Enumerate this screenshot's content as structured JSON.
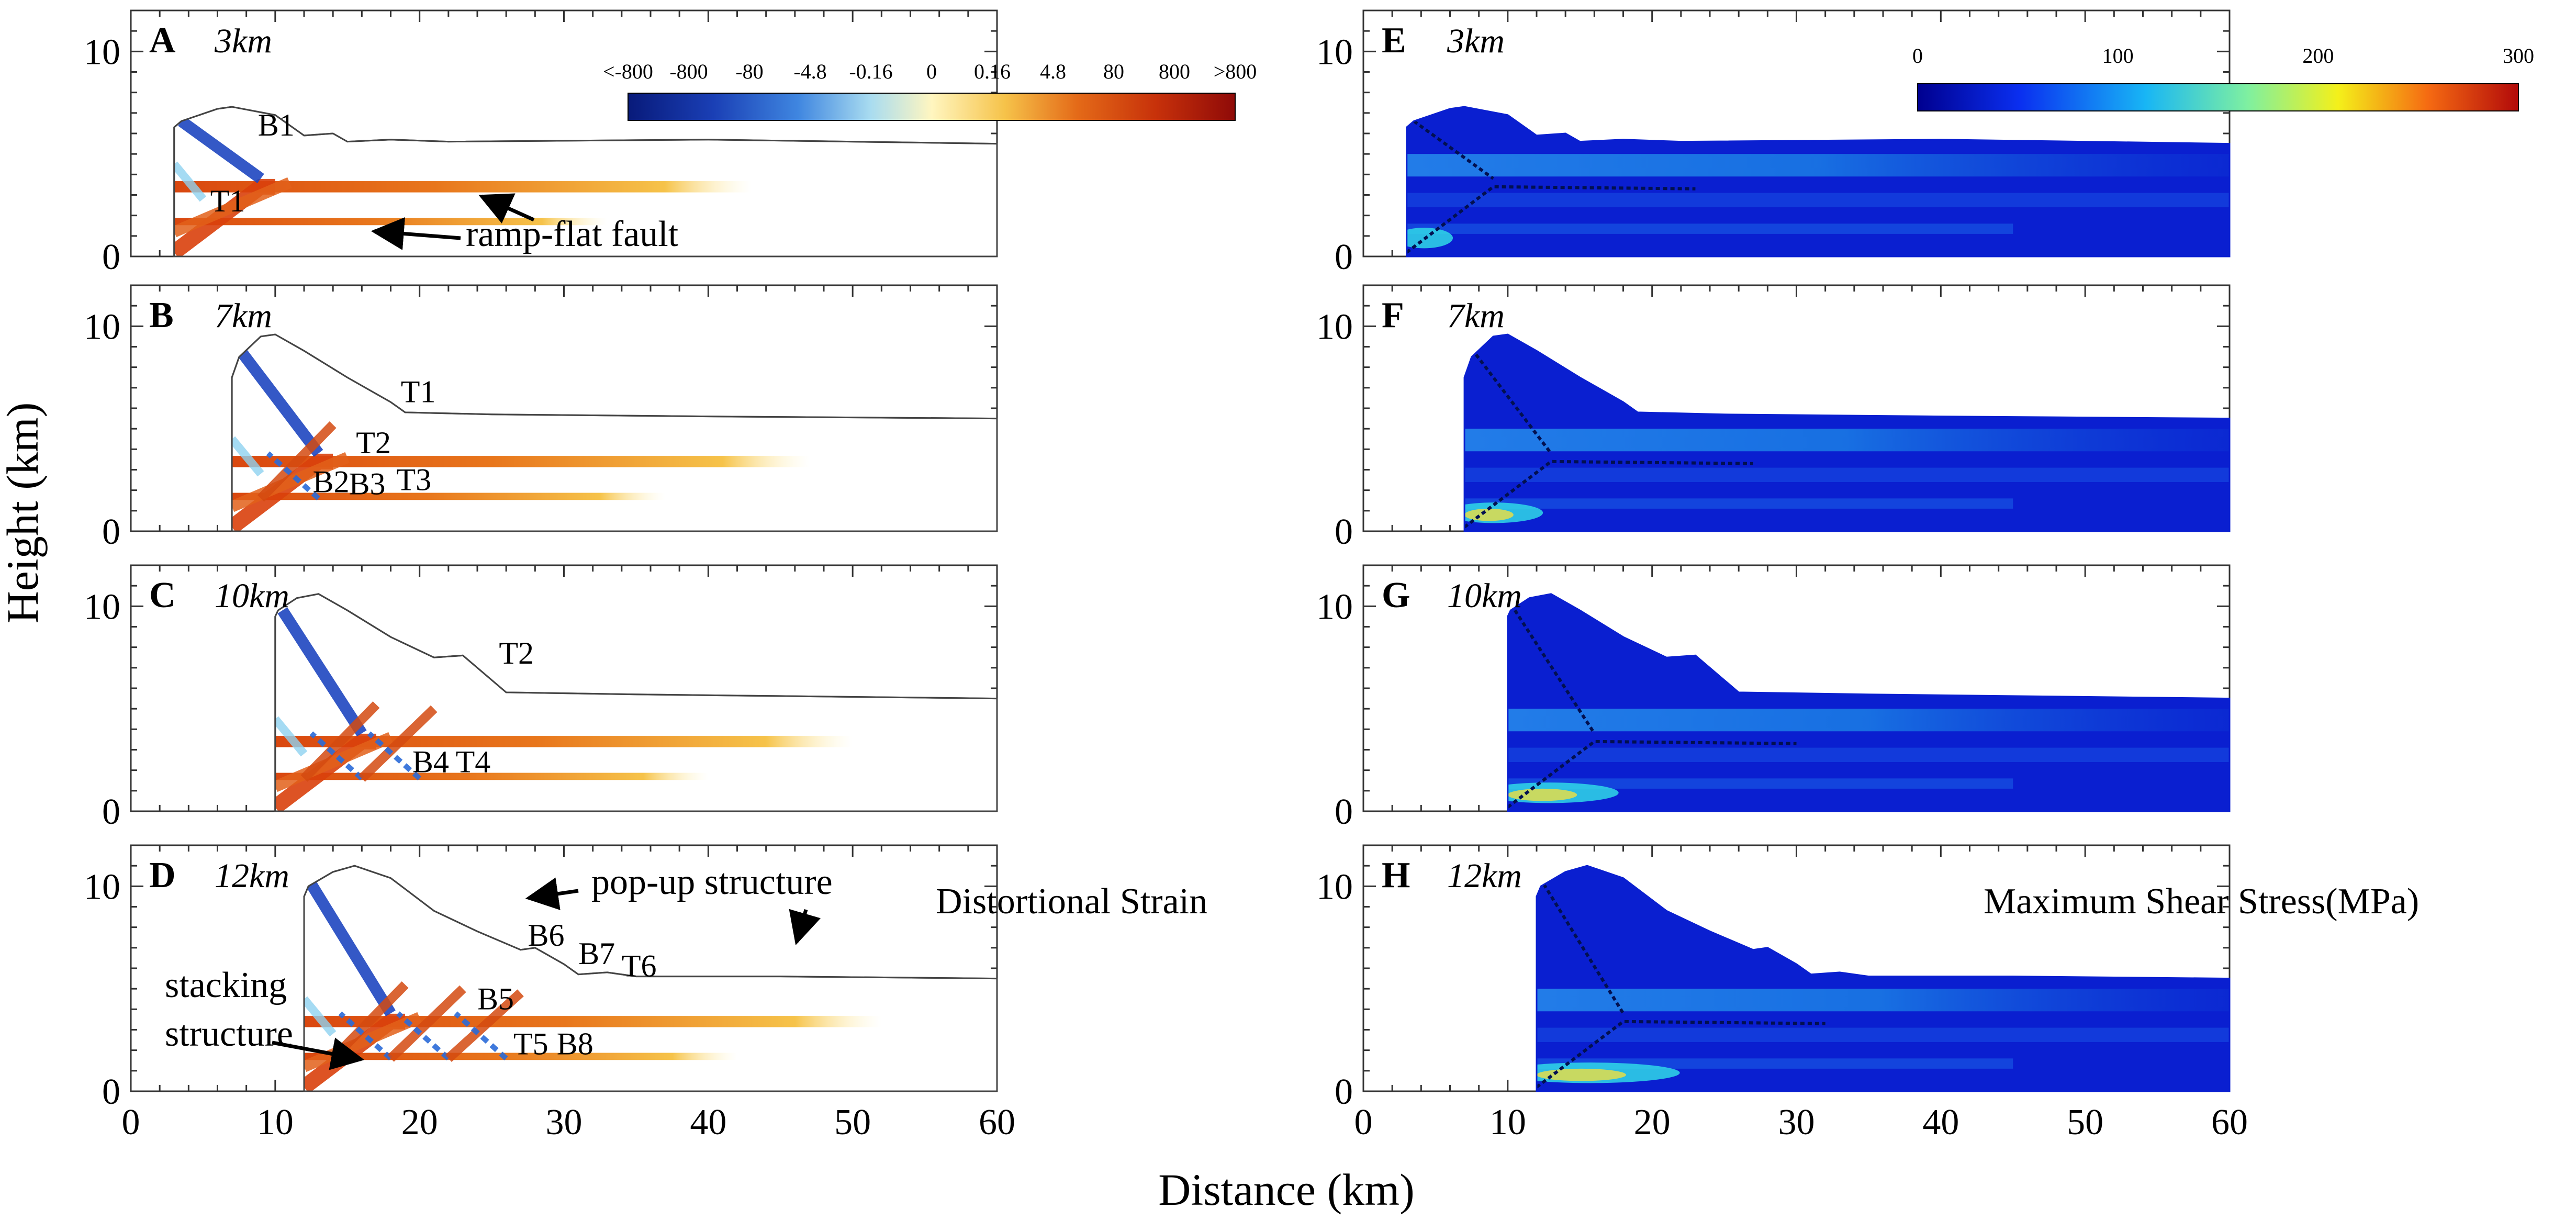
{
  "chart_data": {
    "type": "heatmap",
    "x_label": "Distance (km)",
    "y_label": "Height (km)",
    "xlim": [
      0,
      60
    ],
    "ylim": [
      0,
      12
    ],
    "x_ticks": [
      "0",
      "10",
      "20",
      "30",
      "40",
      "50",
      "60"
    ],
    "y_ticks": [
      "0",
      "10"
    ],
    "strain_colorbar": {
      "ticks": [
        "<-800",
        "-800",
        "-80",
        "-4.8",
        "-0.16",
        "0",
        "0.16",
        "4.8",
        "80",
        "800",
        ">800"
      ],
      "colors": [
        "#081a7a",
        "#1a3fb5",
        "#3f86e0",
        "#a9dcf0",
        "#fff6c0",
        "#f6c34a",
        "#e46a18",
        "#c7310a",
        "#8f0a08"
      ]
    },
    "stress_colorbar": {
      "ticks": [
        "0",
        "100",
        "200",
        "300"
      ],
      "tick_values": [
        0,
        100,
        200,
        300
      ],
      "colors": [
        "#00008f",
        "#0a2ff0",
        "#18b6f5",
        "#7ff0a0",
        "#f4f01a",
        "#f56a12",
        "#b20a0a"
      ]
    },
    "strain_panels": [
      {
        "letter": "A",
        "shortening": "3km",
        "section": {
          "x": [
            3,
            3.5,
            6,
            7,
            10,
            12,
            14,
            15,
            18,
            22,
            40,
            60
          ],
          "y": [
            6.3,
            6.6,
            7.2,
            7.3,
            6.9,
            5.9,
            6.0,
            5.6,
            5.7,
            5.6,
            5.7,
            5.5
          ]
        },
        "labels": [
          {
            "text": "B1",
            "x": 8.8,
            "y": 5.9
          },
          {
            "text": "T1",
            "x": 5.5,
            "y": 2.2
          }
        ]
      },
      {
        "letter": "B",
        "shortening": "7km",
        "section": {
          "x": [
            7,
            7.5,
            9,
            10,
            12,
            15,
            18,
            19,
            25,
            40,
            60
          ],
          "y": [
            7.5,
            8.5,
            9.5,
            9.6,
            8.8,
            7.5,
            6.3,
            5.8,
            5.7,
            5.6,
            5.5
          ]
        },
        "labels": [
          {
            "text": "T1",
            "x": 18.7,
            "y": 6.3
          },
          {
            "text": "T2",
            "x": 15.6,
            "y": 3.8
          },
          {
            "text": "B2",
            "x": 12.6,
            "y": 1.9
          },
          {
            "text": "B3",
            "x": 15.1,
            "y": 1.8
          },
          {
            "text": "T3",
            "x": 18.4,
            "y": 2.0
          }
        ]
      },
      {
        "letter": "C",
        "shortening": "10km",
        "section": {
          "x": [
            10,
            10.2,
            11.5,
            13,
            15,
            18,
            21,
            23,
            25,
            26,
            35,
            60
          ],
          "y": [
            9.5,
            9.8,
            10.4,
            10.6,
            9.8,
            8.5,
            7.5,
            7.6,
            6.4,
            5.8,
            5.7,
            5.5
          ]
        },
        "labels": [
          {
            "text": "T2",
            "x": 25.5,
            "y": 7.2
          },
          {
            "text": "B4",
            "x": 19.5,
            "y": 1.9
          },
          {
            "text": "T4",
            "x": 22.5,
            "y": 1.9
          }
        ]
      },
      {
        "letter": "D",
        "shortening": "12km",
        "section": {
          "x": [
            12,
            12.3,
            14,
            15.5,
            18,
            21,
            24,
            27,
            28,
            30,
            31,
            33,
            35,
            45,
            60
          ],
          "y": [
            9.5,
            10.0,
            10.7,
            11.0,
            10.4,
            8.8,
            7.8,
            6.9,
            7.0,
            6.2,
            5.7,
            5.8,
            5.6,
            5.6,
            5.5
          ]
        },
        "labels": [
          {
            "text": "B6",
            "x": 27.5,
            "y": 7.1
          },
          {
            "text": "B7",
            "x": 31.0,
            "y": 6.2
          },
          {
            "text": "T6",
            "x": 34.0,
            "y": 5.6
          },
          {
            "text": "B5",
            "x": 24.0,
            "y": 4.0
          },
          {
            "text": "T5",
            "x": 26.5,
            "y": 1.8
          },
          {
            "text": "B8",
            "x": 29.5,
            "y": 1.8
          }
        ]
      }
    ],
    "stress_panels": [
      {
        "letter": "E",
        "shortening": "3km",
        "section": {
          "x": [
            3,
            3.5,
            6,
            7,
            10,
            12,
            14,
            15,
            18,
            22,
            40,
            60
          ],
          "y": [
            6.3,
            6.6,
            7.2,
            7.3,
            6.9,
            5.9,
            6.0,
            5.6,
            5.7,
            5.6,
            5.7,
            5.5
          ]
        }
      },
      {
        "letter": "F",
        "shortening": "7km",
        "section": {
          "x": [
            7,
            7.5,
            9,
            10,
            12,
            15,
            18,
            19,
            25,
            40,
            60
          ],
          "y": [
            7.5,
            8.5,
            9.5,
            9.6,
            8.8,
            7.5,
            6.3,
            5.8,
            5.7,
            5.6,
            5.5
          ]
        }
      },
      {
        "letter": "G",
        "shortening": "10km",
        "section": {
          "x": [
            10,
            10.2,
            11.5,
            13,
            15,
            18,
            21,
            23,
            25,
            26,
            35,
            60
          ],
          "y": [
            9.5,
            9.8,
            10.4,
            10.6,
            9.8,
            8.5,
            7.5,
            7.6,
            6.4,
            5.8,
            5.7,
            5.5
          ]
        }
      },
      {
        "letter": "H",
        "shortening": "12km",
        "section": {
          "x": [
            12,
            12.3,
            14,
            15.5,
            18,
            21,
            24,
            27,
            28,
            30,
            31,
            33,
            35,
            45,
            60
          ],
          "y": [
            9.5,
            10.0,
            10.7,
            11.0,
            10.4,
            8.8,
            7.8,
            6.9,
            7.0,
            6.2,
            5.7,
            5.8,
            5.6,
            5.6,
            5.5
          ]
        }
      }
    ],
    "annotations": {
      "ramp_flat": "ramp-flat fault",
      "popup": "pop-up structure",
      "stacking_1": "stacking",
      "stacking_2": "structure",
      "strain_title": "Distortional Strain",
      "stress_title": "Maximum Shear Stress(MPa)"
    }
  }
}
